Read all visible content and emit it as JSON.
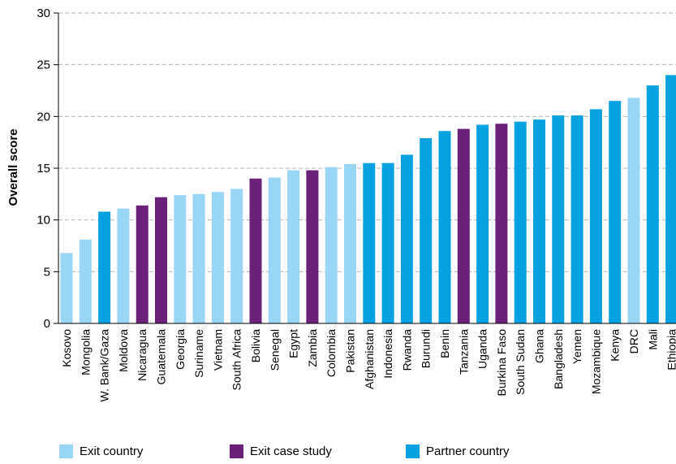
{
  "chart_data": {
    "type": "bar",
    "ylabel": "Overall score",
    "ylim": [
      0,
      30
    ],
    "yticks": [
      0,
      5,
      10,
      15,
      20,
      25,
      30
    ],
    "grid": true,
    "legend_position": "bottom",
    "categories": [
      "Kosovo",
      "Mongolia",
      "W. Bank/Gaza",
      "Moldova",
      "Nicaragua",
      "Guatemala",
      "Georgia",
      "Suriname",
      "Vietnam",
      "South Africa",
      "Bolivia",
      "Senegal",
      "Egypt",
      "Zambia",
      "Colombia",
      "Pakistan",
      "Afghanistan",
      "Indonesia",
      "Rwanda",
      "Burundi",
      "Benin",
      "Tanzania",
      "Uganda",
      "Burkina Faso",
      "South Sudan",
      "Ghana",
      "Bangladesh",
      "Yemen",
      "Mozambique",
      "Kenya",
      "DRC",
      "Mali",
      "Ethiopia"
    ],
    "values": [
      6.8,
      8.1,
      10.8,
      11.1,
      11.4,
      12.2,
      12.4,
      12.5,
      12.7,
      13.0,
      14.0,
      14.1,
      14.8,
      14.8,
      15.1,
      15.4,
      15.5,
      15.5,
      16.3,
      17.9,
      18.6,
      18.8,
      19.2,
      19.3,
      19.5,
      19.7,
      20.1,
      20.1,
      20.7,
      21.5,
      21.8,
      23.0,
      24.0
    ],
    "groups": [
      "exit",
      "exit",
      "partner",
      "exit",
      "case",
      "case",
      "exit",
      "exit",
      "exit",
      "exit",
      "case",
      "exit",
      "exit",
      "case",
      "exit",
      "exit",
      "partner",
      "partner",
      "partner",
      "partner",
      "partner",
      "case",
      "partner",
      "case",
      "partner",
      "partner",
      "partner",
      "partner",
      "partner",
      "partner",
      "exit",
      "partner",
      "partner"
    ],
    "legend": [
      {
        "key": "exit",
        "label": "Exit country",
        "color": "#99d5f5"
      },
      {
        "key": "case",
        "label": "Exit case study",
        "color": "#6b2079"
      },
      {
        "key": "partner",
        "label": "Partner country",
        "color": "#05a1e0"
      }
    ]
  }
}
